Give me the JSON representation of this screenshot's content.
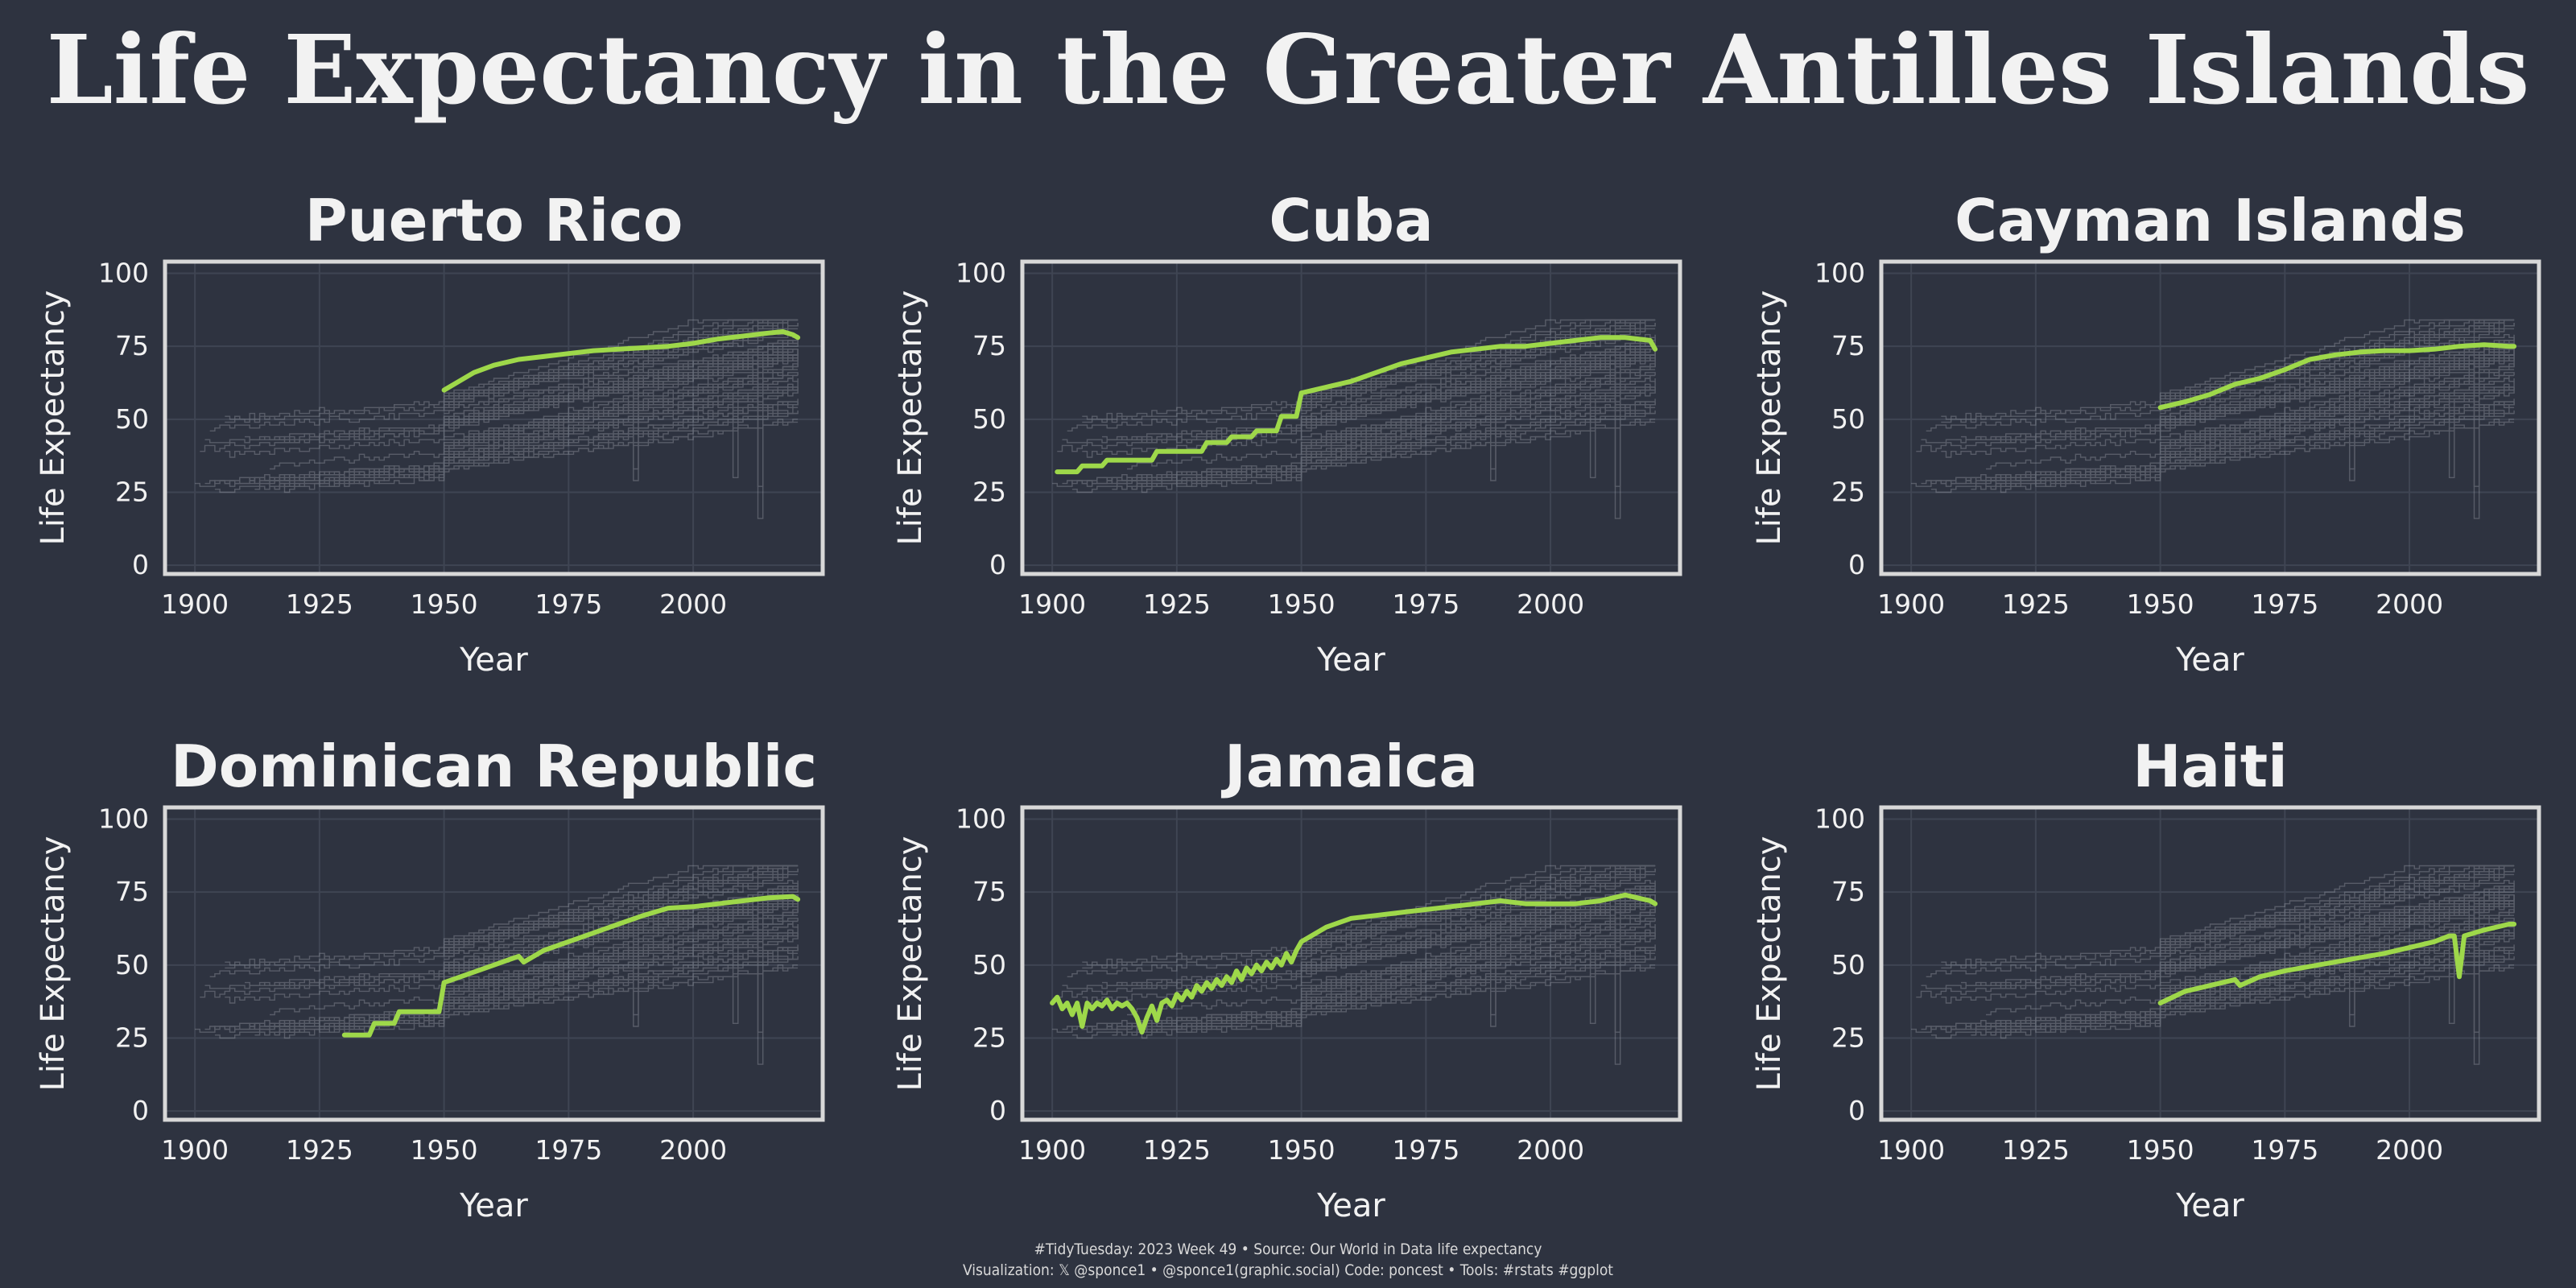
{
  "title": "Life Expectancy in the Greater Antilles Islands",
  "caption": {
    "line1": "#TidyTuesday: 2023 Week 49 • Source: Our World in Data life expectancy",
    "line2": "Visualization: 𝕏 @sponce1 • @sponce1(graphic.social) Code: poncest • Tools: #rstats #ggplot"
  },
  "colors": {
    "background": "#2e3340",
    "highlight": "#9ed84a",
    "context_lines": "#b8bcc4",
    "grid": "#3f4553",
    "frame": "#d8d8d8",
    "text": "#f2f2f2"
  },
  "chart_data": [
    {
      "type": "line",
      "title": "Puerto Rico",
      "xlabel": "Year",
      "ylabel": "Life Expectancy",
      "xlim": [
        1894,
        2026
      ],
      "ylim": [
        -3,
        104
      ],
      "xticks": [
        1900,
        1925,
        1950,
        1975,
        2000
      ],
      "yticks": [
        0,
        25,
        50,
        75,
        100
      ],
      "grid": true,
      "background_series": "all countries (grey)",
      "series": [
        {
          "name": "Puerto Rico",
          "x": [
            1950,
            1953,
            1956,
            1960,
            1965,
            1970,
            1975,
            1980,
            1985,
            1990,
            1995,
            2000,
            2005,
            2010,
            2015,
            2018,
            2020,
            2021
          ],
          "y": [
            60,
            63,
            66,
            68.5,
            70.5,
            71.5,
            72.5,
            73.5,
            74,
            74.5,
            75,
            76,
            77.5,
            78.5,
            79.5,
            80,
            79,
            78
          ]
        }
      ]
    },
    {
      "type": "line",
      "title": "Cuba",
      "xlabel": "Year",
      "ylabel": "Life Expectancy",
      "xlim": [
        1894,
        2026
      ],
      "ylim": [
        -3,
        104
      ],
      "xticks": [
        1900,
        1925,
        1950,
        1975,
        2000
      ],
      "yticks": [
        0,
        25,
        50,
        75,
        100
      ],
      "grid": true,
      "background_series": "all countries (grey)",
      "series": [
        {
          "name": "Cuba",
          "x": [
            1901,
            1905,
            1906,
            1910,
            1911,
            1920,
            1921,
            1930,
            1931,
            1935,
            1936,
            1940,
            1941,
            1945,
            1946,
            1949,
            1950,
            1955,
            1960,
            1965,
            1970,
            1975,
            1980,
            1985,
            1990,
            1995,
            2000,
            2005,
            2010,
            2015,
            2020,
            2021
          ],
          "y": [
            32,
            32,
            34,
            34,
            36,
            36,
            39,
            39,
            42,
            42,
            44,
            44,
            46,
            46,
            51,
            51,
            59,
            61,
            63,
            66,
            69,
            71,
            73,
            74,
            75,
            75,
            76,
            77,
            78,
            78,
            77,
            74
          ]
        }
      ]
    },
    {
      "type": "line",
      "title": "Cayman Islands",
      "xlabel": "Year",
      "ylabel": "Life Expectancy",
      "xlim": [
        1894,
        2026
      ],
      "ylim": [
        -3,
        104
      ],
      "xticks": [
        1900,
        1925,
        1950,
        1975,
        2000
      ],
      "yticks": [
        0,
        25,
        50,
        75,
        100
      ],
      "grid": true,
      "background_series": "all countries (grey)",
      "series": [
        {
          "name": "Cayman Islands",
          "x": [
            1950,
            1955,
            1960,
            1965,
            1970,
            1975,
            1980,
            1985,
            1990,
            1995,
            2000,
            2005,
            2010,
            2015,
            2020,
            2021
          ],
          "y": [
            54,
            56,
            58.5,
            62,
            64,
            67,
            70.5,
            72,
            73,
            73.5,
            73.5,
            74,
            75,
            75.5,
            75,
            75
          ]
        }
      ]
    },
    {
      "type": "line",
      "title": "Dominican Republic",
      "xlabel": "Year",
      "ylabel": "Life Expectancy",
      "xlim": [
        1894,
        2026
      ],
      "ylim": [
        -3,
        104
      ],
      "xticks": [
        1900,
        1925,
        1950,
        1975,
        2000
      ],
      "yticks": [
        0,
        25,
        50,
        75,
        100
      ],
      "grid": true,
      "background_series": "all countries (grey)",
      "series": [
        {
          "name": "Dominican Republic",
          "x": [
            1930,
            1935,
            1936,
            1940,
            1941,
            1949,
            1950,
            1955,
            1960,
            1965,
            1966,
            1970,
            1975,
            1980,
            1985,
            1990,
            1995,
            2000,
            2005,
            2010,
            2015,
            2020,
            2021
          ],
          "y": [
            26,
            26,
            30,
            30,
            34,
            34,
            44,
            47,
            50,
            53,
            51,
            55,
            58,
            61,
            64,
            67,
            69.5,
            70,
            71,
            72,
            73,
            73.5,
            72.5
          ]
        }
      ]
    },
    {
      "type": "line",
      "title": "Jamaica",
      "xlabel": "Year",
      "ylabel": "Life Expectancy",
      "xlim": [
        1894,
        2026
      ],
      "ylim": [
        -3,
        104
      ],
      "xticks": [
        1900,
        1925,
        1950,
        1975,
        2000
      ],
      "yticks": [
        0,
        25,
        50,
        75,
        100
      ],
      "grid": true,
      "background_series": "all countries (grey)",
      "series": [
        {
          "name": "Jamaica",
          "x": [
            1900,
            1901,
            1902,
            1903,
            1904,
            1905,
            1906,
            1907,
            1908,
            1909,
            1910,
            1911,
            1912,
            1913,
            1914,
            1915,
            1916,
            1917,
            1918,
            1919,
            1920,
            1921,
            1922,
            1923,
            1924,
            1925,
            1926,
            1927,
            1928,
            1929,
            1930,
            1931,
            1932,
            1933,
            1934,
            1935,
            1936,
            1937,
            1938,
            1939,
            1940,
            1941,
            1942,
            1943,
            1944,
            1945,
            1946,
            1947,
            1948,
            1949,
            1950,
            1955,
            1960,
            1965,
            1970,
            1975,
            1980,
            1985,
            1990,
            1995,
            2000,
            2005,
            2010,
            2015,
            2020,
            2021
          ],
          "y": [
            37,
            39,
            35,
            37,
            33,
            37,
            29,
            37,
            35,
            37,
            36,
            38,
            35,
            37,
            36,
            37,
            35,
            32,
            27,
            32,
            36,
            31,
            37,
            38,
            36,
            40,
            38,
            41,
            39,
            43,
            41,
            44,
            42,
            45,
            43,
            46,
            44,
            48,
            45,
            49,
            47,
            50,
            48,
            51,
            49,
            52,
            50,
            54,
            51,
            55,
            58,
            63,
            66,
            67,
            68,
            69,
            70,
            71,
            72,
            71,
            71,
            71,
            72,
            74,
            72,
            71
          ]
        }
      ]
    },
    {
      "type": "line",
      "title": "Haiti",
      "xlabel": "Year",
      "ylabel": "Life Expectancy",
      "xlim": [
        1894,
        2026
      ],
      "ylim": [
        -3,
        104
      ],
      "xticks": [
        1900,
        1925,
        1950,
        1975,
        2000
      ],
      "yticks": [
        0,
        25,
        50,
        75,
        100
      ],
      "grid": true,
      "background_series": "all countries (grey)",
      "series": [
        {
          "name": "Haiti",
          "x": [
            1950,
            1955,
            1960,
            1965,
            1966,
            1970,
            1975,
            1980,
            1985,
            1990,
            1995,
            2000,
            2005,
            2008,
            2009,
            2010,
            2011,
            2015,
            2020,
            2021
          ],
          "y": [
            37,
            41,
            43,
            45,
            43,
            46,
            48,
            49.5,
            51,
            52.5,
            54,
            56,
            58,
            60,
            60,
            46,
            60,
            62,
            64,
            64
          ]
        }
      ]
    }
  ]
}
